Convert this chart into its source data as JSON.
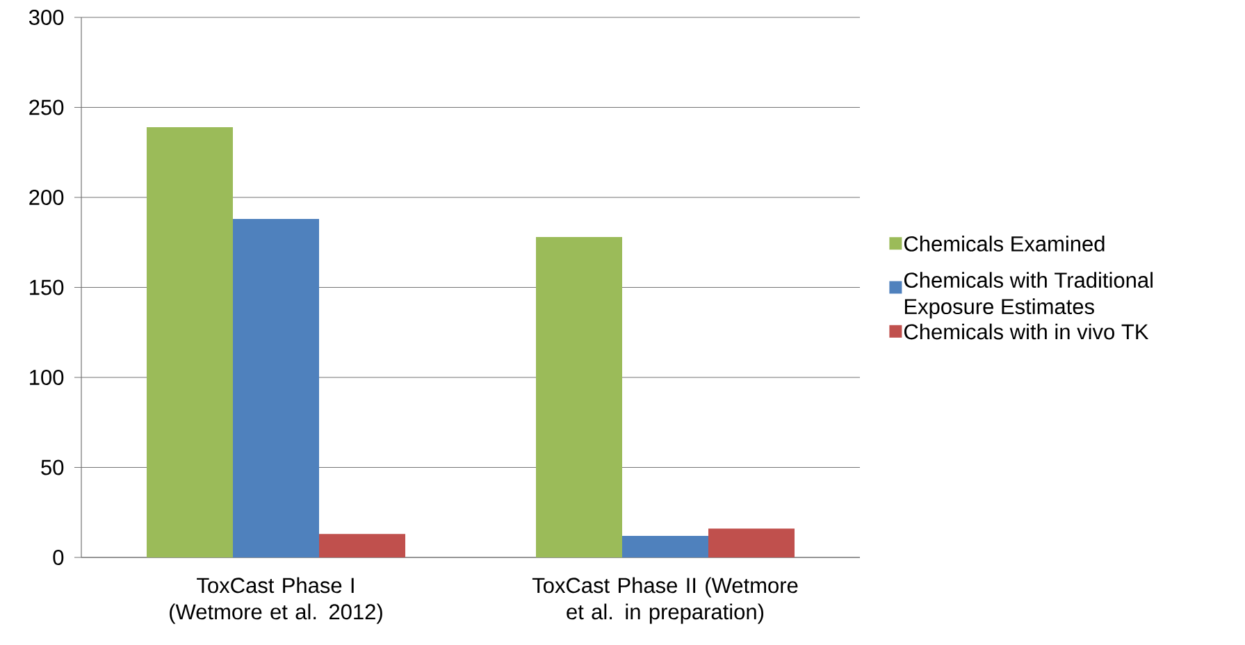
{
  "chart_data": {
    "type": "bar",
    "categories": [
      "ToxCast Phase I (Wetmore et al. 2012)",
      "ToxCast Phase II (Wetmore et al. in preparation)"
    ],
    "series": [
      {
        "name": "Chemicals Examined",
        "color": "#9bbb59",
        "values": [
          239,
          178
        ]
      },
      {
        "name": "Chemicals with Traditional Exposure Estimates",
        "color": "#4f81bd",
        "values": [
          188,
          12
        ]
      },
      {
        "name": "Chemicals with in vivo TK",
        "color": "#c0504d",
        "values": [
          13,
          16
        ]
      }
    ],
    "ylim": [
      0,
      300
    ],
    "yticks": [
      0,
      50,
      100,
      150,
      200,
      250,
      300
    ],
    "grid": "y",
    "legend": "right"
  }
}
